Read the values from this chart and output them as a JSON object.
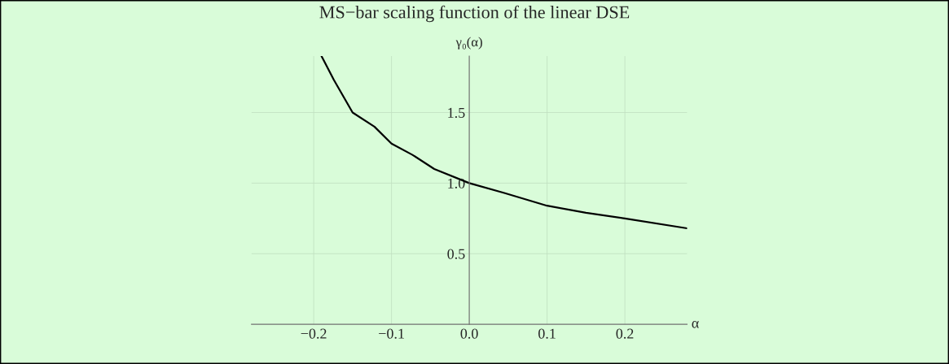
{
  "chart_data": {
    "type": "line",
    "title": "MS−bar scaling function of the linear DSE",
    "xlabel": "α",
    "ylabel": "γ₀(α)",
    "x": [
      -0.19,
      -0.174,
      -0.15,
      -0.122,
      -0.1,
      -0.073,
      -0.045,
      0.0,
      0.045,
      0.1,
      0.15,
      0.2,
      0.28
    ],
    "series": [
      {
        "color": "#000000",
        "values": [
          1.9,
          1.73,
          1.5,
          1.4,
          1.28,
          1.2,
          1.1,
          1.0,
          0.93,
          0.84,
          0.79,
          0.75,
          0.68
        ]
      }
    ],
    "xlim": [
      -0.28,
      0.28
    ],
    "ylim": [
      0,
      1.9
    ],
    "xticks": [
      {
        "value": -0.2,
        "label": "−0.2"
      },
      {
        "value": -0.1,
        "label": "−0.1"
      },
      {
        "value": 0,
        "label": "0.0"
      },
      {
        "value": 0.1,
        "label": "0.1"
      },
      {
        "value": 0.2,
        "label": "0.2"
      }
    ],
    "yticks": [
      0.5,
      {
        "value": 1,
        "label": "1.0"
      },
      1.5
    ],
    "grid": true,
    "legend": false,
    "marker": "none",
    "line_style": "solid"
  }
}
